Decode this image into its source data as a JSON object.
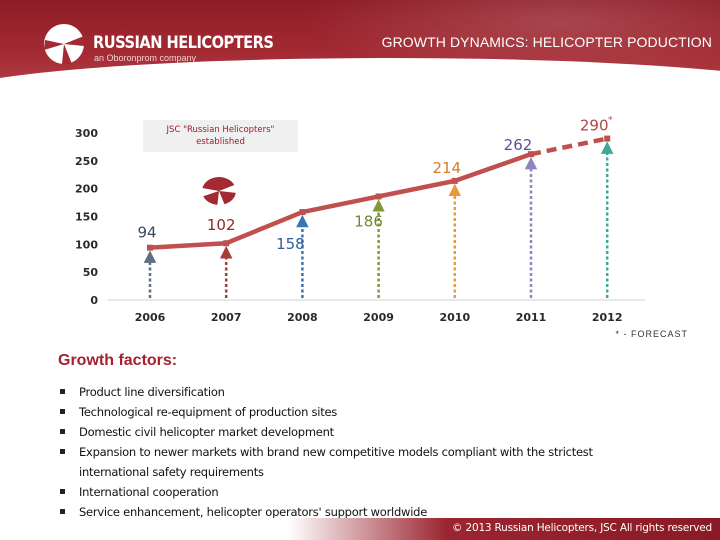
{
  "header": {
    "logo_name": "RUSSIAN HELICOPTERS",
    "logo_sub": "an Oboronprom company",
    "page_title": "GROWTH DYNAMICS: HELICOPTER PODUCTION"
  },
  "callout": {
    "line1": "JSC \"Russian Helicopters\"",
    "line2": "established"
  },
  "chart_data": {
    "type": "line",
    "x": [
      "2006",
      "2007",
      "2008",
      "2009",
      "2010",
      "2011",
      "2012"
    ],
    "values": [
      94,
      102,
      158,
      186,
      214,
      262,
      290
    ],
    "value_labels": [
      "94",
      "102",
      "158",
      "186",
      "214",
      "262",
      "290"
    ],
    "forecast_marker": "*",
    "forecast_from_index": 5,
    "ylim": [
      0,
      300
    ],
    "yticks": [
      "0",
      "50",
      "100",
      "150",
      "200",
      "250",
      "300"
    ],
    "line_color": "#c0504d",
    "grid": false
  },
  "forecast_note": "* - FORECAST",
  "factors": {
    "title": "Growth factors:",
    "items": [
      {
        "line1": "Product line diversification"
      },
      {
        "line1": "Technological re-equipment of production sites"
      },
      {
        "line1": "Domestic civil helicopter market development"
      },
      {
        "line1": "Expansion to newer markets with brand new competitive models compliant with the strictest",
        "line2": "international safety requirements"
      },
      {
        "line1": "International cooperation"
      },
      {
        "line1": "Service enhancement, helicopter operators' support worldwide"
      }
    ]
  },
  "footer": {
    "copyright": "© 2013 Russian Helicopters, JSC All rights reserved"
  }
}
